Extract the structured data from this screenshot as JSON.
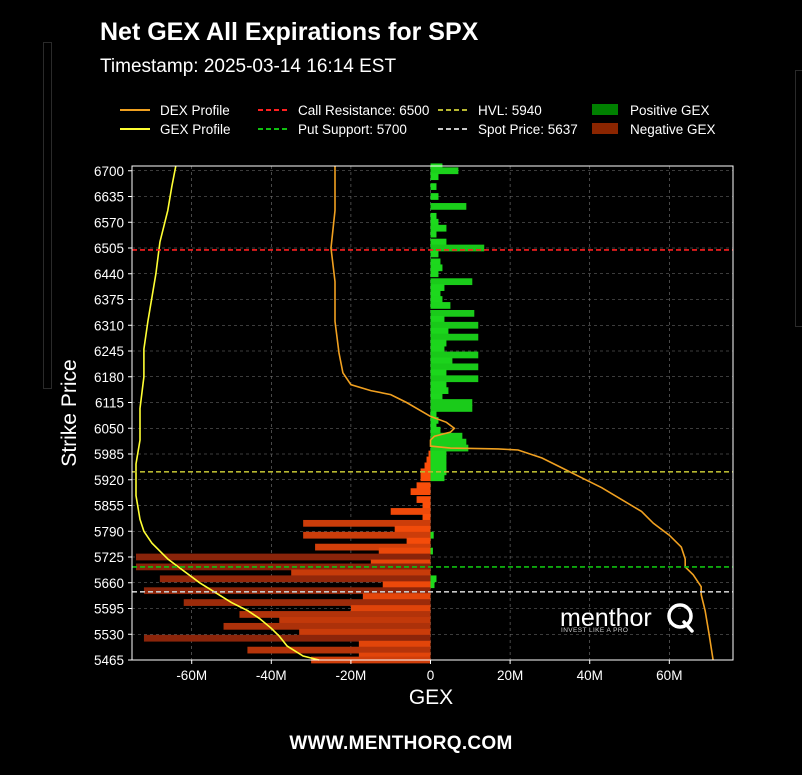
{
  "chart_data": {
    "type": "bar",
    "orientation": "horizontal",
    "title": "Net GEX All Expirations for SPX",
    "subtitle": "Timestamp: 2025-03-14 16:14 EST",
    "xlabel": "GEX",
    "ylabel": "Strike Price",
    "xlim": [
      -75000000,
      76000000
    ],
    "ylim": [
      5465,
      6712
    ],
    "x_ticks": [
      -60000000,
      -40000000,
      -20000000,
      0,
      20000000,
      40000000,
      60000000
    ],
    "x_tick_labels": [
      "-60M",
      "-40M",
      "-20M",
      "0",
      "20M",
      "40M",
      "60M"
    ],
    "y_ticks": [
      6700,
      6635,
      6570,
      6505,
      6440,
      6375,
      6310,
      6245,
      6180,
      6115,
      6050,
      5985,
      5920,
      5855,
      5790,
      5725,
      5660,
      5595,
      5530,
      5465
    ],
    "grid": true,
    "legend_position": "top",
    "colors": {
      "dex_profile": "#f0a020",
      "gex_profile": "#ffff33",
      "call_resistance": "#ff2020",
      "put_support": "#10c010",
      "hvl": "#b8b830",
      "spot_price": "#c8c8c8",
      "positive_gex": "#008000",
      "negative_gex": "#8b2500"
    },
    "legend": [
      {
        "key": "dex",
        "label": "DEX Profile",
        "kind": "line",
        "color": "#f0a020"
      },
      {
        "key": "call",
        "label": "Call Resistance: 6500",
        "kind": "dash",
        "color": "#ff2020"
      },
      {
        "key": "hvl",
        "label": "HVL: 5940",
        "kind": "dash",
        "color": "#b8b830"
      },
      {
        "key": "pos",
        "label": "Positive GEX",
        "kind": "box",
        "color": "#008000"
      },
      {
        "key": "gex",
        "label": "GEX Profile",
        "kind": "line",
        "color": "#ffff33"
      },
      {
        "key": "put",
        "label": "Put Support: 5700",
        "kind": "dash",
        "color": "#10c010"
      },
      {
        "key": "spot",
        "label": "Spot Price: 5637",
        "kind": "dash",
        "color": "#c8c8c8"
      },
      {
        "key": "neg",
        "label": "Negative GEX",
        "kind": "box",
        "color": "#8b2500"
      }
    ],
    "levels": [
      {
        "name": "Call Resistance",
        "value": 6500,
        "color": "#ff2020"
      },
      {
        "name": "HVL",
        "value": 5940,
        "color": "#b8b830"
      },
      {
        "name": "Put Support",
        "value": 5700,
        "color": "#10c010"
      },
      {
        "name": "Spot Price",
        "value": 5637,
        "color": "#c8c8c8"
      }
    ],
    "series": [
      {
        "name": "Positive GEX",
        "note": "horizontal bars: [strike, GEX]",
        "values": [
          [
            6710,
            3000000
          ],
          [
            6700,
            7000000
          ],
          [
            6685,
            2000000
          ],
          [
            6660,
            1500000
          ],
          [
            6635,
            2000000
          ],
          [
            6610,
            9000000
          ],
          [
            6585,
            1500000
          ],
          [
            6570,
            2000000
          ],
          [
            6555,
            4000000
          ],
          [
            6540,
            1500000
          ],
          [
            6520,
            4000000
          ],
          [
            6505,
            13500000
          ],
          [
            6490,
            2000000
          ],
          [
            6470,
            2500000
          ],
          [
            6455,
            3000000
          ],
          [
            6440,
            2000000
          ],
          [
            6420,
            10500000
          ],
          [
            6405,
            3500000
          ],
          [
            6390,
            2500000
          ],
          [
            6375,
            3000000
          ],
          [
            6360,
            5000000
          ],
          [
            6340,
            11000000
          ],
          [
            6325,
            3500000
          ],
          [
            6310,
            12000000
          ],
          [
            6295,
            4500000
          ],
          [
            6280,
            12000000
          ],
          [
            6265,
            4000000
          ],
          [
            6250,
            3500000
          ],
          [
            6235,
            12000000
          ],
          [
            6220,
            5500000
          ],
          [
            6205,
            12000000
          ],
          [
            6190,
            4000000
          ],
          [
            6175,
            12000000
          ],
          [
            6160,
            4000000
          ],
          [
            6145,
            4500000
          ],
          [
            6130,
            3000000
          ],
          [
            6115,
            10500000
          ],
          [
            6100,
            10500000
          ],
          [
            6085,
            1500000
          ],
          [
            6070,
            2000000
          ],
          [
            6055,
            1500000
          ],
          [
            6045,
            2500000
          ],
          [
            6030,
            8000000
          ],
          [
            6015,
            9000000
          ],
          [
            6000,
            9500000
          ],
          [
            5985,
            4000000
          ],
          [
            5970,
            4000000
          ],
          [
            5955,
            4000000
          ],
          [
            5940,
            4000000
          ],
          [
            5925,
            3500000
          ],
          [
            5780,
            800000
          ],
          [
            5740,
            600000
          ],
          [
            5670,
            1500000
          ],
          [
            5655,
            1000000
          ]
        ]
      },
      {
        "name": "Negative GEX",
        "note": "horizontal bars: [strike, GEX]",
        "values": [
          [
            5985,
            -500000
          ],
          [
            5970,
            -1000000
          ],
          [
            5955,
            -1500000
          ],
          [
            5940,
            -2500000
          ],
          [
            5925,
            -2500000
          ],
          [
            5905,
            -3500000
          ],
          [
            5890,
            -5000000
          ],
          [
            5870,
            -3500000
          ],
          [
            5855,
            -2000000
          ],
          [
            5840,
            -10000000
          ],
          [
            5825,
            -2000000
          ],
          [
            5810,
            -32000000
          ],
          [
            5795,
            -9000000
          ],
          [
            5780,
            -32000000
          ],
          [
            5765,
            -6000000
          ],
          [
            5750,
            -29000000
          ],
          [
            5740,
            -13000000
          ],
          [
            5725,
            -74000000
          ],
          [
            5710,
            -15000000
          ],
          [
            5700,
            -74000000
          ],
          [
            5685,
            -35000000
          ],
          [
            5670,
            -68000000
          ],
          [
            5655,
            -12000000
          ],
          [
            5640,
            -72000000
          ],
          [
            5625,
            -17000000
          ],
          [
            5610,
            -62000000
          ],
          [
            5595,
            -20000000
          ],
          [
            5580,
            -48000000
          ],
          [
            5565,
            -38000000
          ],
          [
            5550,
            -52000000
          ],
          [
            5535,
            -33000000
          ],
          [
            5520,
            -72000000
          ],
          [
            5505,
            -18000000
          ],
          [
            5490,
            -46000000
          ],
          [
            5475,
            -18000000
          ],
          [
            5465,
            -30000000
          ]
        ]
      },
      {
        "name": "DEX Profile",
        "note": "line: [GEX-axis value, strike]",
        "values": [
          [
            -24000000,
            6712
          ],
          [
            -24000000,
            6600
          ],
          [
            -25000000,
            6505
          ],
          [
            -24000000,
            6420
          ],
          [
            -24000000,
            6320
          ],
          [
            -23000000,
            6240
          ],
          [
            -22000000,
            6190
          ],
          [
            -20000000,
            6160
          ],
          [
            -15000000,
            6145
          ],
          [
            -10000000,
            6135
          ],
          [
            -6000000,
            6115
          ],
          [
            0,
            6080
          ],
          [
            4000000,
            6065
          ],
          [
            6000000,
            6050
          ],
          [
            5000000,
            6040
          ],
          [
            1000000,
            6030
          ],
          [
            0,
            6020
          ],
          [
            0,
            6005
          ],
          [
            5000000,
            6000
          ],
          [
            17000000,
            5998
          ],
          [
            22000000,
            5995
          ],
          [
            28000000,
            5975
          ],
          [
            33000000,
            5950
          ],
          [
            38000000,
            5925
          ],
          [
            43000000,
            5900
          ],
          [
            48000000,
            5870
          ],
          [
            53000000,
            5840
          ],
          [
            56000000,
            5810
          ],
          [
            60000000,
            5780
          ],
          [
            63000000,
            5750
          ],
          [
            64000000,
            5720
          ],
          [
            64000000,
            5700
          ],
          [
            66000000,
            5680
          ],
          [
            68000000,
            5650
          ],
          [
            68000000,
            5630
          ],
          [
            69000000,
            5590
          ],
          [
            70000000,
            5530
          ],
          [
            71000000,
            5465
          ]
        ]
      },
      {
        "name": "GEX Profile",
        "note": "line: [GEX-axis value, strike]",
        "values": [
          [
            -64000000,
            6712
          ],
          [
            -65000000,
            6660
          ],
          [
            -66000000,
            6600
          ],
          [
            -68000000,
            6520
          ],
          [
            -69000000,
            6440
          ],
          [
            -70000000,
            6380
          ],
          [
            -71000000,
            6320
          ],
          [
            -72000000,
            6250
          ],
          [
            -72000000,
            6180
          ],
          [
            -73000000,
            6100
          ],
          [
            -73000000,
            6020
          ],
          [
            -74000000,
            5960
          ],
          [
            -74000000,
            5880
          ],
          [
            -73000000,
            5820
          ],
          [
            -72000000,
            5790
          ],
          [
            -70000000,
            5760
          ],
          [
            -66000000,
            5720
          ],
          [
            -62000000,
            5690
          ],
          [
            -58000000,
            5660
          ],
          [
            -54000000,
            5635
          ],
          [
            -50000000,
            5610
          ],
          [
            -46000000,
            5590
          ],
          [
            -43000000,
            5570
          ],
          [
            -40000000,
            5545
          ],
          [
            -38000000,
            5525
          ],
          [
            -36000000,
            5500
          ],
          [
            -32000000,
            5475
          ],
          [
            -28000000,
            5465
          ]
        ]
      }
    ]
  },
  "watermark": {
    "brand": "menthor",
    "tagline": "INVEST LIKE A PRO"
  },
  "footer_text": "WWW.MENTHORQ.COM"
}
